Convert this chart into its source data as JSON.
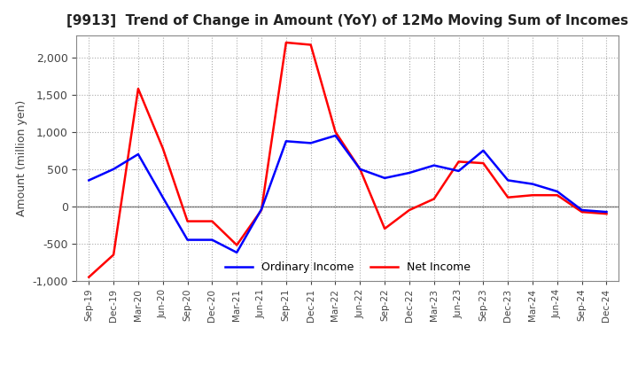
{
  "title": "[9913]  Trend of Change in Amount (YoY) of 12Mo Moving Sum of Incomes",
  "ylabel": "Amount (million yen)",
  "x_labels": [
    "Sep-19",
    "Dec-19",
    "Mar-20",
    "Jun-20",
    "Sep-20",
    "Dec-20",
    "Mar-21",
    "Jun-21",
    "Sep-21",
    "Dec-21",
    "Mar-22",
    "Jun-22",
    "Sep-22",
    "Dec-22",
    "Mar-23",
    "Jun-23",
    "Sep-23",
    "Dec-23",
    "Mar-24",
    "Jun-24",
    "Sep-24",
    "Dec-24"
  ],
  "ordinary_income": [
    350,
    500,
    700,
    120,
    -450,
    -450,
    -620,
    -40,
    875,
    850,
    950,
    500,
    380,
    450,
    550,
    475,
    750,
    350,
    300,
    200,
    -50,
    -75
  ],
  "net_income": [
    -950,
    -650,
    1580,
    780,
    -200,
    -200,
    -520,
    -50,
    2200,
    2170,
    1000,
    500,
    -300,
    -50,
    100,
    600,
    580,
    120,
    150,
    150,
    -75,
    -100
  ],
  "ordinary_color": "#0000ff",
  "net_color": "#ff0000",
  "ylim": [
    -1000,
    2300
  ],
  "yticks": [
    -1000,
    -500,
    0,
    500,
    1000,
    1500,
    2000
  ],
  "background_color": "#ffffff",
  "grid_color": "#aaaaaa"
}
